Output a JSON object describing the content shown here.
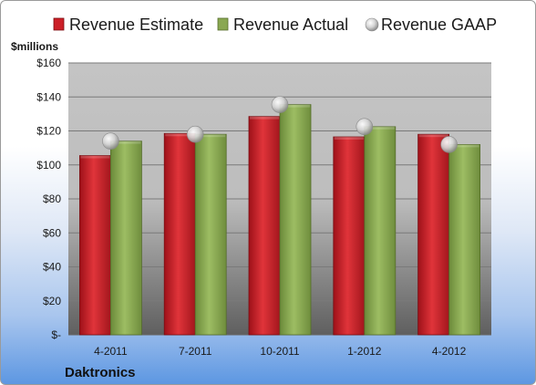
{
  "chart_data": {
    "type": "bar",
    "categories": [
      "4-2011",
      "7-2011",
      "10-2011",
      "1-2012",
      "4-2012"
    ],
    "series": [
      {
        "name": "Revenue Estimate",
        "kind": "bar",
        "color": "#cc1f27",
        "values": [
          105.5,
          118.5,
          128.5,
          116.5,
          118.0
        ]
      },
      {
        "name": "Revenue Actual",
        "kind": "bar",
        "color": "#8aa852",
        "values": [
          114.0,
          118.0,
          135.5,
          122.5,
          112.0
        ]
      },
      {
        "name": "Revenue GAAP",
        "kind": "marker",
        "color": "#c8c8c8",
        "values": [
          114.0,
          118.0,
          135.5,
          122.5,
          112.0
        ]
      }
    ],
    "ylabel": "$millions",
    "ylim": [
      0,
      160
    ],
    "yticks": [
      0,
      20,
      40,
      60,
      80,
      100,
      120,
      140,
      160
    ],
    "ytick_labels": [
      "$-",
      "$20",
      "$40",
      "$60",
      "$80",
      "$100",
      "$120",
      "$140",
      "$160"
    ],
    "grid": true,
    "legend": "top",
    "company": "Daktronics"
  }
}
